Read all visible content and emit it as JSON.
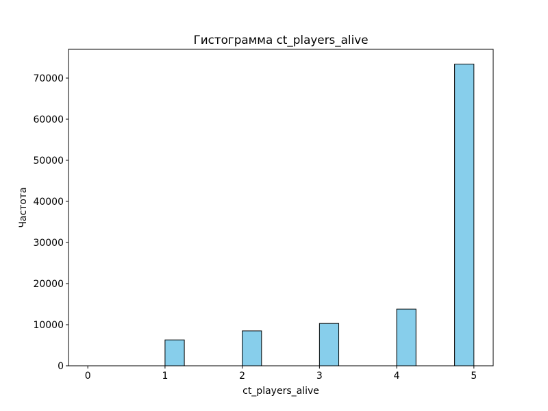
{
  "chart_data": {
    "type": "bar",
    "title": "Гистограмма ct_players_alive",
    "xlabel": "ct_players_alive",
    "ylabel": "Частота",
    "xlim": [
      -0.25,
      5.25
    ],
    "ylim": [
      0,
      77000
    ],
    "xticks": [
      0,
      1,
      2,
      3,
      4,
      5
    ],
    "yticks": [
      0,
      10000,
      20000,
      30000,
      40000,
      50000,
      60000,
      70000
    ],
    "bar_color": "#87ceeb",
    "edge_color": "#000000",
    "bins": [
      {
        "x0": 0.0,
        "x1": 0.25,
        "value": 0
      },
      {
        "x0": 1.0,
        "x1": 1.25,
        "value": 6300
      },
      {
        "x0": 2.0,
        "x1": 2.25,
        "value": 8500
      },
      {
        "x0": 3.0,
        "x1": 3.25,
        "value": 10300
      },
      {
        "x0": 4.0,
        "x1": 4.25,
        "value": 13800
      },
      {
        "x0": 4.75,
        "x1": 5.0,
        "value": 73400
      }
    ],
    "grid": false,
    "legend": "none"
  }
}
